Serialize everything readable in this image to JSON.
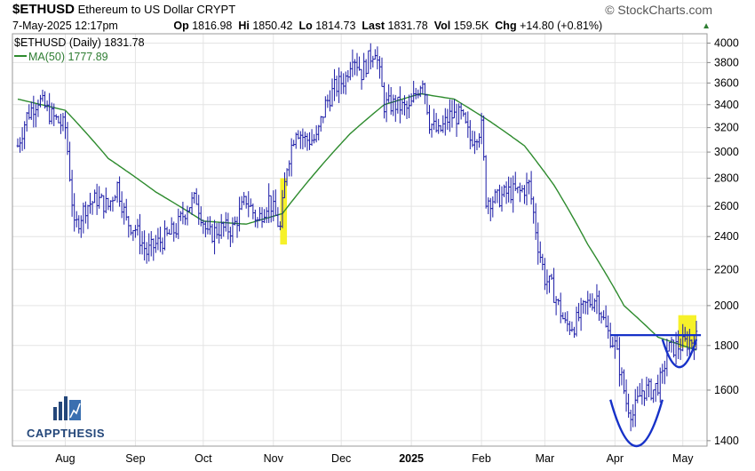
{
  "header": {
    "symbol": "$ETHUSD",
    "name": "Ethereum to US Dollar",
    "exchange": "CRYPT",
    "source": "© StockCharts.com",
    "date": "7-May-2025 12:17pm",
    "op_label": "Op",
    "op": "1816.98",
    "hi_label": "Hi",
    "hi": "1850.42",
    "lo_label": "Lo",
    "lo": "1814.73",
    "last_label": "Last",
    "last": "1831.78",
    "vol_label": "Vol",
    "vol": "159.5K",
    "chg_label": "Chg",
    "chg": "+14.80 (+0.81%)"
  },
  "legend": {
    "price": "$ETHUSD (Daily) 1831.78",
    "ma": "MA(50) 1777.89"
  },
  "logo": {
    "text": "CAPPTHESIS"
  },
  "colors": {
    "bars": "#1a1aa6",
    "ma": "#2e8b2e",
    "highlight": "#f6f12a",
    "annotation": "#1631c8",
    "grid": "#e4e4e4"
  },
  "chart_data": {
    "type": "ohlc",
    "title": "$ETHUSD (Daily)",
    "ylim": [
      1380,
      4100
    ],
    "y_scale": "log",
    "y_ticks": [
      1400,
      1600,
      1800,
      2000,
      2200,
      2400,
      2600,
      2800,
      3000,
      3200,
      3400,
      3600,
      3800,
      4000
    ],
    "x_ticks": [
      {
        "label": "Aug",
        "date": "2024-08-01"
      },
      {
        "label": "Sep",
        "date": "2024-09-01"
      },
      {
        "label": "Oct",
        "date": "2024-10-01"
      },
      {
        "label": "Nov",
        "date": "2024-11-01"
      },
      {
        "label": "Dec",
        "date": "2024-12-01"
      },
      {
        "label": "2025",
        "date": "2025-01-01"
      },
      {
        "label": "Feb",
        "date": "2025-02-01"
      },
      {
        "label": "Mar",
        "date": "2025-03-01"
      },
      {
        "label": "Apr",
        "date": "2025-04-01"
      },
      {
        "label": "May",
        "date": "2025-05-01"
      }
    ],
    "date_range": [
      "2024-07-11",
      "2025-05-07"
    ],
    "close_keypoints": [
      [
        "2024-07-11",
        3050
      ],
      [
        "2024-07-15",
        3300
      ],
      [
        "2024-07-20",
        3450
      ],
      [
        "2024-07-26",
        3300
      ],
      [
        "2024-08-01",
        3200
      ],
      [
        "2024-08-05",
        2450
      ],
      [
        "2024-08-10",
        2600
      ],
      [
        "2024-08-15",
        2650
      ],
      [
        "2024-08-20",
        2600
      ],
      [
        "2024-08-24",
        2750
      ],
      [
        "2024-08-28",
        2500
      ],
      [
        "2024-09-01",
        2450
      ],
      [
        "2024-09-06",
        2300
      ],
      [
        "2024-09-10",
        2350
      ],
      [
        "2024-09-15",
        2400
      ],
      [
        "2024-09-19",
        2450
      ],
      [
        "2024-09-24",
        2600
      ],
      [
        "2024-09-28",
        2650
      ],
      [
        "2024-10-03",
        2400
      ],
      [
        "2024-10-08",
        2450
      ],
      [
        "2024-10-14",
        2450
      ],
      [
        "2024-10-20",
        2650
      ],
      [
        "2024-10-25",
        2500
      ],
      [
        "2024-10-30",
        2650
      ],
      [
        "2024-11-04",
        2450
      ],
      [
        "2024-11-07",
        2900
      ],
      [
        "2024-11-11",
        3200
      ],
      [
        "2024-11-15",
        3100
      ],
      [
        "2024-11-20",
        3100
      ],
      [
        "2024-11-24",
        3400
      ],
      [
        "2024-11-28",
        3550
      ],
      [
        "2024-12-03",
        3650
      ],
      [
        "2024-12-06",
        3900
      ],
      [
        "2024-12-10",
        3700
      ],
      [
        "2024-12-16",
        3950
      ],
      [
        "2024-12-20",
        3400
      ],
      [
        "2024-12-25",
        3400
      ],
      [
        "2024-12-31",
        3350
      ],
      [
        "2025-01-06",
        3650
      ],
      [
        "2025-01-09",
        3250
      ],
      [
        "2025-01-13",
        3150
      ],
      [
        "2025-01-18",
        3300
      ],
      [
        "2025-01-23",
        3300
      ],
      [
        "2025-01-27",
        3100
      ],
      [
        "2025-02-01",
        3200
      ],
      [
        "2025-02-03",
        2650
      ],
      [
        "2025-02-08",
        2650
      ],
      [
        "2025-02-13",
        2700
      ],
      [
        "2025-02-18",
        2700
      ],
      [
        "2025-02-22",
        2750
      ],
      [
        "2025-02-26",
        2350
      ],
      [
        "2025-03-01",
        2150
      ],
      [
        "2025-03-04",
        2100
      ],
      [
        "2025-03-10",
        1900
      ],
      [
        "2025-03-14",
        1900
      ],
      [
        "2025-03-19",
        2000
      ],
      [
        "2025-03-24",
        2050
      ],
      [
        "2025-03-28",
        1880
      ],
      [
        "2025-04-01",
        1800
      ],
      [
        "2025-04-06",
        1550
      ],
      [
        "2025-04-09",
        1500
      ],
      [
        "2025-04-13",
        1600
      ],
      [
        "2025-04-18",
        1600
      ],
      [
        "2025-04-22",
        1650
      ],
      [
        "2025-04-24",
        1780
      ],
      [
        "2025-04-30",
        1800
      ],
      [
        "2025-05-04",
        1820
      ],
      [
        "2025-05-07",
        1831.78
      ]
    ],
    "ma50_keypoints": [
      [
        "2024-07-11",
        3450
      ],
      [
        "2024-08-01",
        3350
      ],
      [
        "2024-08-20",
        2950
      ],
      [
        "2024-09-10",
        2700
      ],
      [
        "2024-10-01",
        2500
      ],
      [
        "2024-10-20",
        2480
      ],
      [
        "2024-11-05",
        2550
      ],
      [
        "2024-11-20",
        2850
      ],
      [
        "2024-12-05",
        3150
      ],
      [
        "2024-12-20",
        3400
      ],
      [
        "2025-01-05",
        3500
      ],
      [
        "2025-01-20",
        3450
      ],
      [
        "2025-02-05",
        3250
      ],
      [
        "2025-02-20",
        3050
      ],
      [
        "2025-03-05",
        2750
      ],
      [
        "2025-03-20",
        2350
      ],
      [
        "2025-04-05",
        2000
      ],
      [
        "2025-04-20",
        1840
      ],
      [
        "2025-05-07",
        1777.89
      ]
    ],
    "series": [
      {
        "name": "$ETHUSD (Daily)",
        "last": 1831.78
      },
      {
        "name": "MA(50)",
        "last": 1777.89
      }
    ],
    "annotations": {
      "resistance_level": 1850,
      "highlight_boxes": [
        {
          "date_from": "2024-11-04",
          "date_to": "2024-11-07",
          "low": 2350,
          "high": 2800
        },
        {
          "date_from": "2025-04-29",
          "date_to": "2025-05-07",
          "low": 1790,
          "high": 1950
        }
      ],
      "arcs": [
        {
          "date_from": "2025-03-30",
          "date_to": "2025-04-22",
          "low": 1380,
          "high": 1560
        },
        {
          "date_from": "2025-04-22",
          "date_to": "2025-05-07",
          "low": 1700,
          "high": 1830
        }
      ]
    }
  }
}
